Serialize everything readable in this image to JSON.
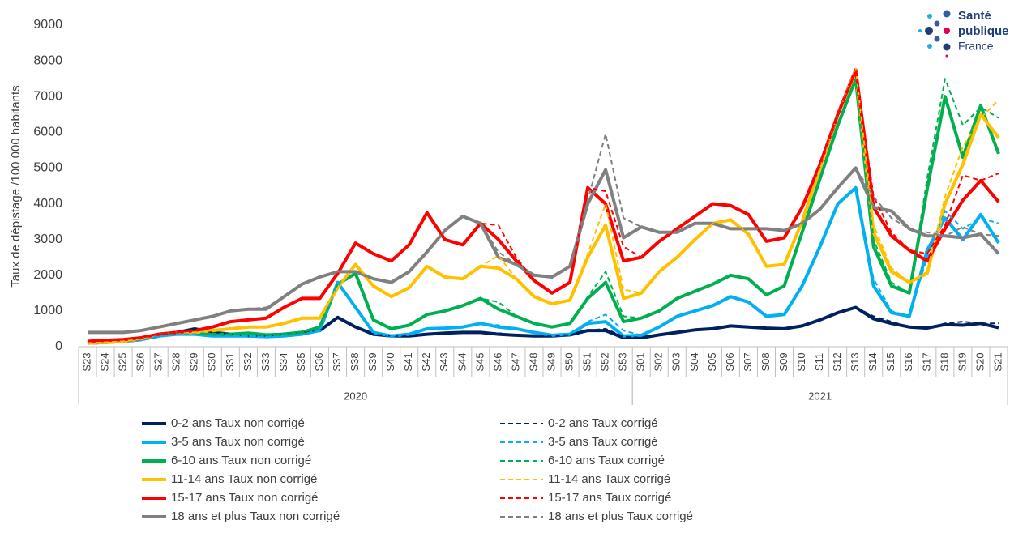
{
  "chart_data": {
    "type": "line",
    "ylabel": "Taux de dépistage /100 000 habitants",
    "logo": [
      "Santé",
      "publique",
      "France"
    ],
    "ylim": [
      0,
      9000
    ],
    "yticks": [
      0,
      1000,
      2000,
      3000,
      4000,
      5000,
      6000,
      7000,
      8000,
      9000
    ],
    "grid": false,
    "legend": "bottom",
    "categories": [
      "S23",
      "S24",
      "S25",
      "S26",
      "S27",
      "S28",
      "S29",
      "S30",
      "S31",
      "S32",
      "S33",
      "S34",
      "S35",
      "S36",
      "S37",
      "S38",
      "S39",
      "S40",
      "S41",
      "S42",
      "S43",
      "S44",
      "S45",
      "S46",
      "S47",
      "S48",
      "S49",
      "S50",
      "S51",
      "S52",
      "S53",
      "S01",
      "S02",
      "S03",
      "S04",
      "S05",
      "S06",
      "S07",
      "S08",
      "S09",
      "S10",
      "S11",
      "S12",
      "S13",
      "S14",
      "S15",
      "S16",
      "S17",
      "S18",
      "S19",
      "S20",
      "S21"
    ],
    "year_groups": [
      {
        "label": "2020",
        "count": 31
      },
      {
        "label": "2021",
        "count": 21
      }
    ],
    "series": [
      {
        "name": "0-2 ans Taux non corrigé",
        "color": "#002060",
        "dash": false,
        "values": [
          100,
          120,
          150,
          200,
          300,
          400,
          500,
          400,
          350,
          300,
          300,
          350,
          400,
          450,
          820,
          550,
          350,
          300,
          300,
          350,
          380,
          400,
          400,
          350,
          320,
          300,
          300,
          330,
          450,
          450,
          250,
          250,
          330,
          400,
          470,
          500,
          580,
          550,
          520,
          500,
          580,
          750,
          950,
          1100,
          780,
          650,
          550,
          520,
          620,
          600,
          650,
          530
        ]
      },
      {
        "name": "3-5 ans Taux non corrigé",
        "color": "#00b0f0",
        "dash": false,
        "values": [
          100,
          120,
          150,
          200,
          300,
          350,
          350,
          300,
          300,
          300,
          280,
          300,
          350,
          450,
          1800,
          1100,
          400,
          300,
          350,
          500,
          520,
          550,
          650,
          550,
          500,
          400,
          320,
          350,
          650,
          700,
          300,
          320,
          550,
          850,
          1000,
          1150,
          1400,
          1250,
          850,
          900,
          1700,
          2800,
          4000,
          4450,
          1700,
          950,
          850,
          2700,
          3600,
          3000,
          3700,
          2900
        ]
      },
      {
        "name": "6-10 ans Taux non corrigé",
        "color": "#00b050",
        "dash": false,
        "values": [
          100,
          120,
          150,
          220,
          350,
          400,
          400,
          350,
          350,
          380,
          330,
          350,
          400,
          550,
          1750,
          2050,
          750,
          500,
          600,
          900,
          1000,
          1150,
          1350,
          1050,
          850,
          650,
          550,
          650,
          1350,
          1800,
          700,
          800,
          1000,
          1350,
          1550,
          1750,
          2000,
          1900,
          1450,
          1700,
          3200,
          4700,
          6200,
          7500,
          2800,
          1700,
          1500,
          4400,
          7000,
          5300,
          6750,
          5400
        ]
      },
      {
        "name": "11-14 ans Taux non corrigé",
        "color": "#ffc000",
        "dash": false,
        "values": [
          100,
          120,
          150,
          220,
          350,
          400,
          400,
          450,
          500,
          550,
          550,
          650,
          800,
          800,
          1650,
          2300,
          1700,
          1400,
          1650,
          2250,
          1950,
          1900,
          2250,
          2200,
          1900,
          1400,
          1200,
          1300,
          2500,
          3400,
          1350,
          1500,
          2100,
          2500,
          3000,
          3450,
          3550,
          3150,
          2250,
          2300,
          3500,
          5000,
          6500,
          7700,
          3200,
          2100,
          1800,
          2050,
          4000,
          5100,
          6500,
          5850
        ]
      },
      {
        "name": "15-17 ans Taux non corrigé",
        "color": "#ff0000",
        "dash": false,
        "values": [
          150,
          180,
          200,
          250,
          350,
          400,
          450,
          550,
          700,
          750,
          800,
          1100,
          1350,
          1350,
          2050,
          2900,
          2600,
          2400,
          2850,
          3750,
          3000,
          2850,
          3450,
          3000,
          2400,
          1850,
          1500,
          1800,
          4450,
          4000,
          2400,
          2500,
          2950,
          3300,
          3650,
          4000,
          3950,
          3700,
          2950,
          3050,
          3900,
          5100,
          6500,
          7750,
          3900,
          3100,
          2700,
          2400,
          3300,
          4100,
          4650,
          4050
        ]
      },
      {
        "name": "18 ans et plus Taux non corrigé",
        "color": "#808080",
        "dash": false,
        "values": [
          400,
          400,
          400,
          450,
          550,
          650,
          750,
          850,
          1000,
          1050,
          1050,
          1400,
          1750,
          1950,
          2100,
          2100,
          1900,
          1800,
          2100,
          2650,
          3250,
          3650,
          3450,
          2500,
          2300,
          2000,
          1950,
          2250,
          4000,
          4950,
          3050,
          3350,
          3200,
          3200,
          3450,
          3450,
          3300,
          3300,
          3300,
          3250,
          3450,
          3850,
          4450,
          5000,
          3900,
          3800,
          3300,
          3100,
          3100,
          3050,
          3150,
          2600
        ]
      },
      {
        "name": "0-2 ans Taux corrigé",
        "color": "#002060",
        "dash": true,
        "values": [
          100,
          120,
          150,
          200,
          300,
          400,
          500,
          400,
          350,
          300,
          300,
          350,
          400,
          450,
          820,
          550,
          350,
          300,
          300,
          350,
          380,
          400,
          400,
          380,
          320,
          300,
          300,
          330,
          450,
          500,
          280,
          250,
          330,
          400,
          470,
          500,
          580,
          550,
          520,
          500,
          580,
          750,
          950,
          1100,
          850,
          700,
          550,
          520,
          650,
          700,
          650,
          650
        ]
      },
      {
        "name": "3-5 ans Taux corrigé",
        "color": "#00b0f0",
        "dash": true,
        "values": [
          100,
          120,
          150,
          200,
          300,
          350,
          350,
          300,
          300,
          300,
          280,
          300,
          350,
          450,
          1800,
          1100,
          400,
          300,
          350,
          500,
          520,
          550,
          650,
          600,
          500,
          400,
          320,
          350,
          700,
          900,
          450,
          320,
          550,
          850,
          1000,
          1150,
          1400,
          1250,
          850,
          900,
          1700,
          2800,
          4000,
          4450,
          1900,
          1000,
          850,
          2500,
          3800,
          3300,
          3600,
          3450
        ]
      },
      {
        "name": "6-10 ans Taux corrigé",
        "color": "#00b050",
        "dash": true,
        "values": [
          100,
          120,
          150,
          220,
          350,
          400,
          400,
          350,
          350,
          380,
          330,
          350,
          400,
          550,
          1750,
          2050,
          750,
          500,
          600,
          900,
          1000,
          1150,
          1350,
          1250,
          850,
          650,
          550,
          650,
          1400,
          2100,
          850,
          800,
          1000,
          1350,
          1550,
          1750,
          2000,
          1900,
          1450,
          1700,
          3200,
          4700,
          6200,
          7500,
          3000,
          1800,
          1500,
          4700,
          7500,
          6200,
          6700,
          6400
        ]
      },
      {
        "name": "11-14 ans Taux corrigé",
        "color": "#ffc000",
        "dash": true,
        "values": [
          100,
          120,
          150,
          220,
          350,
          400,
          400,
          450,
          500,
          550,
          550,
          650,
          800,
          800,
          1650,
          2300,
          1700,
          1400,
          1650,
          2250,
          1950,
          1900,
          2250,
          2550,
          1900,
          1400,
          1200,
          1300,
          2600,
          4000,
          1600,
          1500,
          2100,
          2500,
          3000,
          3450,
          3550,
          3150,
          2250,
          2300,
          3500,
          5000,
          6500,
          7800,
          3400,
          2200,
          1800,
          2100,
          4200,
          5600,
          6400,
          6900
        ]
      },
      {
        "name": "15-17 ans Taux corrigé",
        "color": "#ff0000",
        "dash": true,
        "values": [
          150,
          180,
          200,
          250,
          350,
          400,
          450,
          550,
          700,
          750,
          800,
          1100,
          1350,
          1350,
          2050,
          2900,
          2600,
          2400,
          2850,
          3750,
          3000,
          2850,
          3450,
          3400,
          2500,
          1850,
          1500,
          1800,
          4450,
          4350,
          2800,
          2500,
          2950,
          3300,
          3650,
          4000,
          3950,
          3700,
          2950,
          3050,
          3900,
          5100,
          6500,
          7750,
          4200,
          3200,
          2700,
          2600,
          3400,
          4800,
          4650,
          4850
        ]
      },
      {
        "name": "18 ans et plus Taux corrigé",
        "color": "#808080",
        "dash": true,
        "values": [
          400,
          400,
          400,
          450,
          550,
          650,
          750,
          850,
          1000,
          1050,
          1100,
          1400,
          1750,
          1950,
          2100,
          2100,
          1900,
          1800,
          2100,
          2650,
          3250,
          3650,
          3450,
          2650,
          2300,
          2000,
          1950,
          2250,
          4100,
          5950,
          3600,
          3350,
          3200,
          3200,
          3450,
          3450,
          3300,
          3300,
          3300,
          3250,
          3450,
          3850,
          4450,
          5000,
          4200,
          3600,
          3300,
          3200,
          3100,
          3350,
          3150,
          3100
        ]
      }
    ]
  }
}
